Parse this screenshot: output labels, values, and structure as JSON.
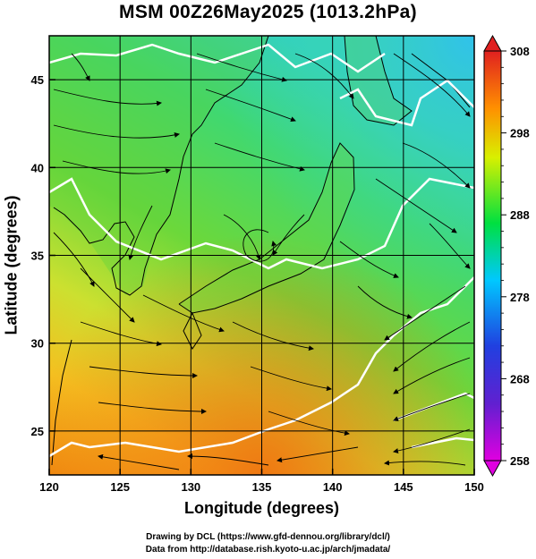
{
  "title": "MSM 00Z26May2025 (1013.2hPa)",
  "x_axis": {
    "label": "Longitude (degrees)",
    "range": [
      120,
      150
    ],
    "ticks": [
      120,
      125,
      130,
      135,
      140,
      145,
      150
    ]
  },
  "y_axis": {
    "label": "Latitude (degrees)",
    "range": [
      22.5,
      47.5
    ],
    "ticks": [
      25,
      30,
      35,
      40,
      45
    ]
  },
  "colorbar": {
    "range": [
      258,
      308
    ],
    "ticks": [
      258,
      268,
      278,
      288,
      298,
      308
    ],
    "colors": [
      "#e000e0",
      "#3030e0",
      "#00c8ff",
      "#00e040",
      "#f0f000",
      "#ff8000",
      "#e02020"
    ]
  },
  "credits": {
    "line1": "Drawing by DCL (https://www.gfd-dennou.org/library/dcl/)",
    "line2": "Data from http://database.rish.kyoto-u.ac.jp/arch/jmadata/"
  }
}
